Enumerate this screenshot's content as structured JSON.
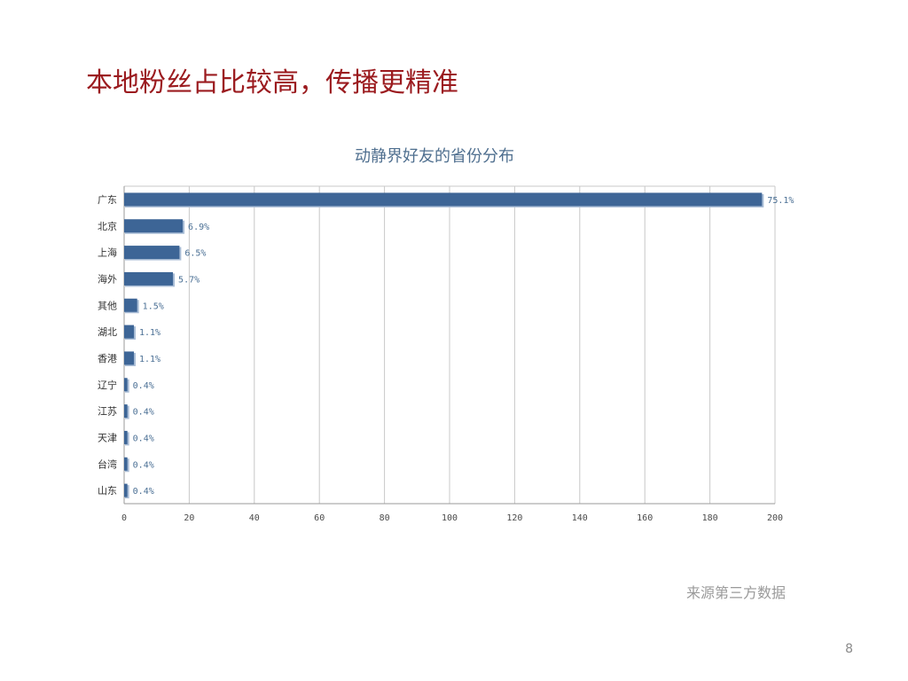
{
  "slide": {
    "title": "本地粉丝占比较高，传播更精准",
    "source": "来源第三方数据",
    "page_number": "8"
  },
  "colors": {
    "title": "#9b1b1f",
    "bar": "#3d6596",
    "bar_shadow": "#a9bdd6",
    "grid": "#c8c8c8"
  },
  "chart_data": {
    "type": "bar",
    "orientation": "horizontal",
    "title": "动静界好友的省份分布",
    "categories": [
      "广东",
      "北京",
      "上海",
      "海外",
      "其他",
      "湖北",
      "香港",
      "辽宁",
      "江苏",
      "天津",
      "台湾",
      "山东"
    ],
    "values": [
      196,
      18,
      17,
      15,
      4,
      3,
      3,
      1,
      1,
      1,
      1,
      1
    ],
    "data_labels": [
      "75.1%",
      "6.9%",
      "6.5%",
      "5.7%",
      "1.5%",
      "1.1%",
      "1.1%",
      "0.4%",
      "0.4%",
      "0.4%",
      "0.4%",
      "0.4%"
    ],
    "xlim": [
      0,
      200
    ],
    "xticks": [
      "0",
      "20",
      "40",
      "60",
      "80",
      "100",
      "120",
      "140",
      "160",
      "180",
      "200"
    ],
    "grid": "vertical",
    "xlabel": "",
    "ylabel": ""
  }
}
